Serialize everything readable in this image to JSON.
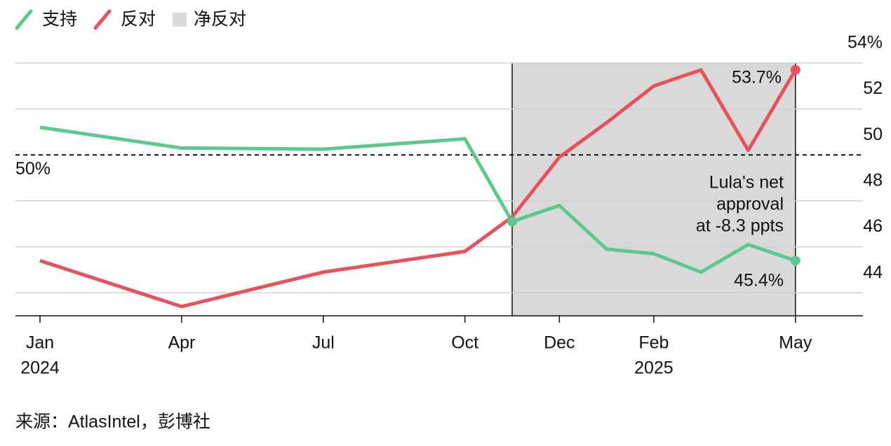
{
  "chart_data": {
    "type": "line",
    "x": [
      "2024-01",
      "2024-04",
      "2024-07",
      "2024-10",
      "2024-11",
      "2024-12",
      "2025-01",
      "2025-02",
      "2025-03",
      "2025-04",
      "2025-05"
    ],
    "series": [
      {
        "name": "支持",
        "color": "#5bc98d",
        "values": [
          51.2,
          50.3,
          50.25,
          50.7,
          47.1,
          47.8,
          45.9,
          45.7,
          44.9,
          46.1,
          45.4
        ],
        "end_label": "45.4%"
      },
      {
        "name": "反对",
        "color": "#e8505b",
        "values": [
          45.4,
          43.4,
          44.9,
          45.8,
          47.3,
          49.9,
          51.4,
          53.0,
          53.7,
          50.2,
          53.7
        ],
        "end_label": "53.7%"
      }
    ],
    "ylim": [
      43,
      54
    ],
    "yticks": [
      {
        "value": 54,
        "label": "54%"
      },
      52,
      50,
      48,
      46,
      44
    ],
    "xticks": [
      {
        "value": "2024-01",
        "label": "Jan"
      },
      {
        "value": "2024-04",
        "label": "Apr"
      },
      {
        "value": "2024-07",
        "label": "Jul"
      },
      {
        "value": "2024-10",
        "label": "Oct"
      },
      {
        "value": "2024-12",
        "label": "Dec"
      },
      {
        "value": "2025-02",
        "label": "Feb"
      },
      {
        "value": "2025-05",
        "label": "May"
      }
    ],
    "year_labels": [
      {
        "value": "2024-01",
        "label": "2024"
      },
      {
        "value": "2025-02",
        "label": "2025"
      }
    ],
    "shade": {
      "x": [
        "2024-11",
        "2025-05"
      ],
      "name": "净反对",
      "color": "#d9d9d9"
    },
    "hline": {
      "value": 50,
      "label": "50%"
    },
    "annotation": [
      "Lula's net",
      "approval",
      "at -8.3 ppts"
    ],
    "grid": true,
    "source": "来源：AtlasIntel，彭博社"
  }
}
